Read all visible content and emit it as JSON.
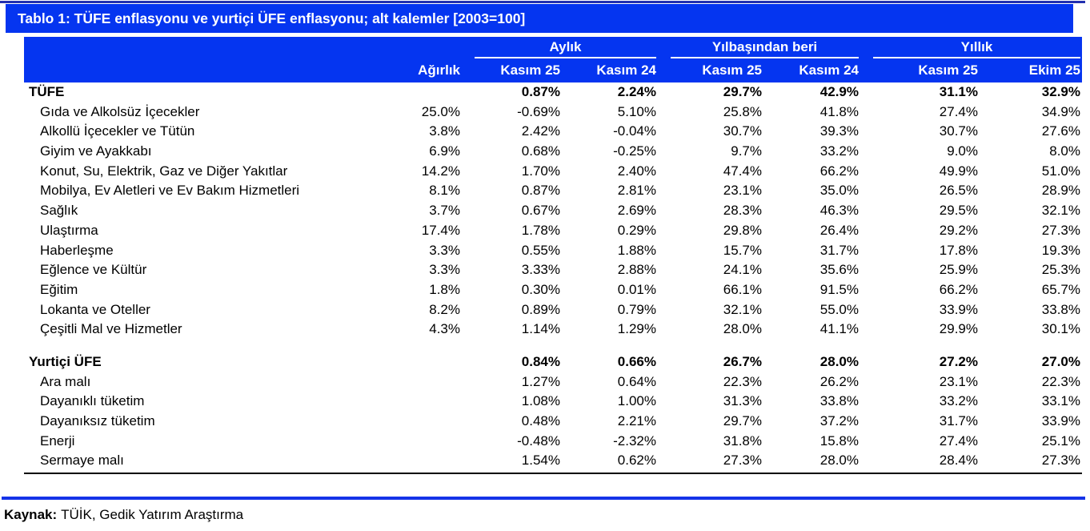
{
  "title": "Tablo 1: TÜFE enflasyonu ve yurtiçi ÜFE enflasyonu; alt kalemler [2003=100]",
  "colors": {
    "header_blue": "#0535f0",
    "top_rule": "#2230b0",
    "bottom_rule": "#1433e8",
    "header_text": "#ffffff",
    "body_text": "#000000"
  },
  "table": {
    "weight_header": "Ağırlık",
    "groups": [
      {
        "label": "Aylık",
        "cols": [
          "Kasım 25",
          "Kasım 24"
        ]
      },
      {
        "label": "Yılbaşından beri",
        "cols": [
          "Kasım 25",
          "Kasım 24"
        ]
      },
      {
        "label": "Yıllık",
        "cols": [
          "Kasım 25",
          "Ekim 25"
        ]
      }
    ],
    "rows": [
      {
        "label": "TÜFE",
        "bold": true,
        "weight": "",
        "values": [
          "0.87%",
          "2.24%",
          "29.7%",
          "42.9%",
          "31.1%",
          "32.9%"
        ]
      },
      {
        "label": "Gıda ve Alkolsüz İçecekler",
        "weight": "25.0%",
        "values": [
          "-0.69%",
          "5.10%",
          "25.8%",
          "41.8%",
          "27.4%",
          "34.9%"
        ]
      },
      {
        "label": "Alkollü İçecekler ve Tütün",
        "weight": "3.8%",
        "values": [
          "2.42%",
          "-0.04%",
          "30.7%",
          "39.3%",
          "30.7%",
          "27.6%"
        ]
      },
      {
        "label": "Giyim ve Ayakkabı",
        "weight": "6.9%",
        "values": [
          "0.68%",
          "-0.25%",
          "9.7%",
          "33.2%",
          "9.0%",
          "8.0%"
        ]
      },
      {
        "label": "Konut, Su, Elektrik, Gaz ve Diğer Yakıtlar",
        "weight": "14.2%",
        "values": [
          "1.70%",
          "2.40%",
          "47.4%",
          "66.2%",
          "49.9%",
          "51.0%"
        ]
      },
      {
        "label": "Mobilya, Ev Aletleri ve Ev Bakım Hizmetleri",
        "weight": "8.1%",
        "values": [
          "0.87%",
          "2.81%",
          "23.1%",
          "35.0%",
          "26.5%",
          "28.9%"
        ]
      },
      {
        "label": "Sağlık",
        "weight": "3.7%",
        "values": [
          "0.67%",
          "2.69%",
          "28.3%",
          "46.3%",
          "29.5%",
          "32.1%"
        ]
      },
      {
        "label": "Ulaştırma",
        "weight": "17.4%",
        "values": [
          "1.78%",
          "0.29%",
          "29.8%",
          "26.4%",
          "29.2%",
          "27.3%"
        ]
      },
      {
        "label": "Haberleşme",
        "weight": "3.3%",
        "values": [
          "0.55%",
          "1.88%",
          "15.7%",
          "31.7%",
          "17.8%",
          "19.3%"
        ]
      },
      {
        "label": "Eğlence ve Kültür",
        "weight": "3.3%",
        "values": [
          "3.33%",
          "2.88%",
          "24.1%",
          "35.6%",
          "25.9%",
          "25.3%"
        ]
      },
      {
        "label": "Eğitim",
        "weight": "1.8%",
        "values": [
          "0.30%",
          "0.01%",
          "66.1%",
          "91.5%",
          "66.2%",
          "65.7%"
        ]
      },
      {
        "label": "Lokanta ve Oteller",
        "weight": "8.2%",
        "values": [
          "0.89%",
          "0.79%",
          "32.1%",
          "55.0%",
          "33.9%",
          "33.8%"
        ]
      },
      {
        "label": "Çeşitli Mal ve Hizmetler",
        "weight": "4.3%",
        "values": [
          "1.14%",
          "1.29%",
          "28.0%",
          "41.1%",
          "29.9%",
          "30.1%"
        ]
      },
      {
        "label": "Yurtiçi ÜFE",
        "bold": true,
        "section_start": true,
        "weight": "",
        "values": [
          "0.84%",
          "0.66%",
          "26.7%",
          "28.0%",
          "27.2%",
          "27.0%"
        ]
      },
      {
        "label": "Ara malı",
        "weight": "",
        "values": [
          "1.27%",
          "0.64%",
          "22.3%",
          "26.2%",
          "23.1%",
          "22.3%"
        ]
      },
      {
        "label": "Dayanıklı tüketim",
        "weight": "",
        "values": [
          "1.08%",
          "1.00%",
          "31.3%",
          "33.8%",
          "33.2%",
          "33.1%"
        ]
      },
      {
        "label": "Dayanıksız tüketim",
        "weight": "",
        "values": [
          "0.48%",
          "2.21%",
          "29.7%",
          "37.2%",
          "31.7%",
          "33.9%"
        ]
      },
      {
        "label": "Enerji",
        "weight": "",
        "values": [
          "-0.48%",
          "-2.32%",
          "31.8%",
          "15.8%",
          "27.4%",
          "25.1%"
        ]
      },
      {
        "label": "Sermaye malı",
        "weight": "",
        "values": [
          "1.54%",
          "0.62%",
          "27.3%",
          "28.0%",
          "28.4%",
          "27.3%"
        ]
      }
    ]
  },
  "footer": {
    "source_label": "Kaynak:",
    "source_text": "TÜİK, Gedik Yatırım Araştırma"
  }
}
